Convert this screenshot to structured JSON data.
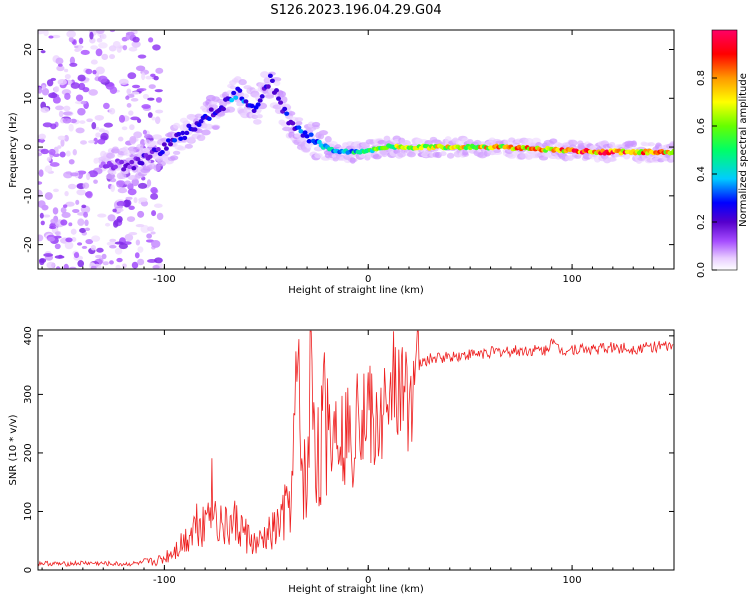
{
  "title": "S126.2023.196.04.29.G04",
  "chart_data": [
    {
      "type": "heatmap",
      "xlabel": "Height of straight line (km)",
      "ylabel": "Frequency (Hz)",
      "xlim": [
        -162,
        150
      ],
      "ylim": [
        -25,
        24
      ],
      "x_ticks": [
        -100,
        0,
        100
      ],
      "y_ticks": [
        -20,
        -10,
        0,
        10,
        20
      ],
      "colorbar": {
        "label": "Normalized spectral amplitude",
        "range": [
          0,
          1
        ],
        "ticks": [
          0.0,
          0.2,
          0.4,
          0.6,
          0.8
        ],
        "tick_labels": [
          "0.0",
          "0.2",
          "0.4",
          "0.6",
          "0.8"
        ],
        "colormap": [
          "#ffffff",
          "#e8ccff",
          "#a64dff",
          "#5500cc",
          "#0000ff",
          "#00ccff",
          "#00ff66",
          "#66ff00",
          "#ffff00",
          "#ff9900",
          "#ff0000",
          "#ff0066"
        ]
      },
      "ridge": [
        {
          "x": -130,
          "y": -3,
          "a": 0.2
        },
        {
          "x": -118,
          "y": -4,
          "a": 0.25
        },
        {
          "x": -108,
          "y": -2,
          "a": 0.3
        },
        {
          "x": -96,
          "y": 1,
          "a": 0.35
        },
        {
          "x": -86,
          "y": 4,
          "a": 0.4
        },
        {
          "x": -76,
          "y": 7,
          "a": 0.35
        },
        {
          "x": -64,
          "y": 11,
          "a": 0.45
        },
        {
          "x": -55,
          "y": 8,
          "a": 0.35
        },
        {
          "x": -48,
          "y": 14,
          "a": 0.3
        },
        {
          "x": -40,
          "y": 6,
          "a": 0.35
        },
        {
          "x": -32,
          "y": 3,
          "a": 0.4
        },
        {
          "x": -25,
          "y": 1,
          "a": 0.45
        },
        {
          "x": -15,
          "y": -1,
          "a": 0.5
        },
        {
          "x": -5,
          "y": -1,
          "a": 0.55
        },
        {
          "x": 10,
          "y": 0,
          "a": 0.7
        },
        {
          "x": 30,
          "y": 0,
          "a": 0.75
        },
        {
          "x": 60,
          "y": 0,
          "a": 0.8
        },
        {
          "x": 90,
          "y": -0.5,
          "a": 0.85
        },
        {
          "x": 110,
          "y": -1,
          "a": 0.95
        },
        {
          "x": 130,
          "y": -1,
          "a": 0.9
        },
        {
          "x": 150,
          "y": -1,
          "a": 0.8
        }
      ]
    },
    {
      "type": "line",
      "xlabel": "Height of straight line (km)",
      "ylabel": "SNR (10 * v/v)",
      "xlim": [
        -162,
        150
      ],
      "ylim": [
        0,
        410
      ],
      "x_ticks": [
        -100,
        0,
        100
      ],
      "y_ticks": [
        0,
        100,
        200,
        300,
        400
      ],
      "color": "#ee2020",
      "series": [
        {
          "x": [
            -162,
            -150,
            -140,
            -130,
            -120,
            -110,
            -105,
            -100,
            -95,
            -90,
            -85,
            -82,
            -80,
            -78,
            -75,
            -70,
            -65,
            -60,
            -55,
            -50,
            -45,
            -40,
            -37,
            -35,
            -33,
            -30,
            -28,
            -25,
            -22,
            -20,
            -18,
            -15,
            -12,
            -10,
            -8,
            -5,
            -3,
            0,
            3,
            5,
            8,
            10,
            12,
            15,
            18,
            20,
            25,
            30,
            40,
            50,
            60,
            70,
            80,
            88,
            90,
            92,
            95,
            100,
            110,
            120,
            130,
            140,
            150
          ],
          "y": [
            12,
            10,
            12,
            11,
            10,
            12,
            14,
            20,
            35,
            50,
            80,
            90,
            75,
            150,
            95,
            70,
            80,
            60,
            40,
            55,
            70,
            100,
            140,
            330,
            200,
            120,
            390,
            180,
            230,
            300,
            220,
            280,
            210,
            260,
            170,
            360,
            250,
            290,
            220,
            250,
            280,
            200,
            380,
            300,
            280,
            320,
            350,
            360,
            365,
            368,
            372,
            374,
            375,
            375,
            400,
            380,
            375,
            378,
            377,
            380,
            378,
            382,
            380
          ]
        }
      ]
    }
  ]
}
